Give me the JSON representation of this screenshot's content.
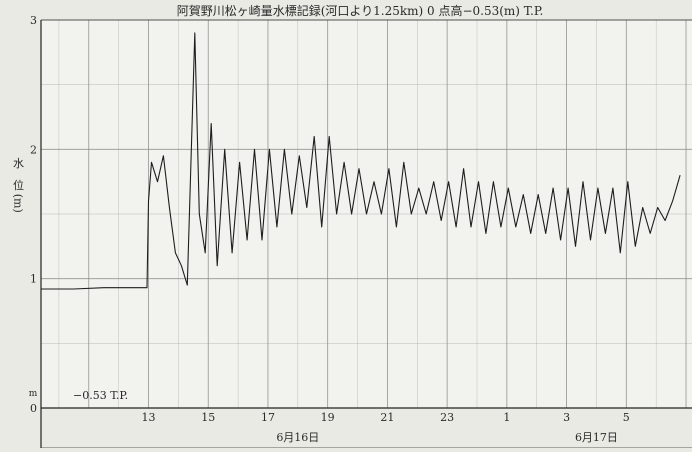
{
  "chart_data": {
    "type": "line",
    "title": "阿賀野川松ヶ崎量水標記録(河口より1.25km) 0 点高−0.53(m) T.P.",
    "ylabel": "水　位 (m)",
    "y_unit_label": "m",
    "ylim": [
      0,
      3
    ],
    "y_ticks": [
      "0",
      "1",
      "2",
      "3"
    ],
    "x_ticks": [
      "13",
      "15",
      "17",
      "19",
      "21",
      "23",
      "1",
      "3",
      "5"
    ],
    "x_tick_hours": [
      13,
      15,
      17,
      19,
      21,
      23,
      25,
      27,
      29
    ],
    "xlim_hours": [
      9.4,
      31.2
    ],
    "date_labels": [
      {
        "text": "6月16日",
        "hour": 18
      },
      {
        "text": "6月17日",
        "hour": 28
      }
    ],
    "datum_annotation": "−0.53 T.P.",
    "grid": true,
    "series": [
      {
        "name": "",
        "x": [
          9.4,
          10.5,
          11.5,
          12.5,
          12.95,
          13.0,
          13.1,
          13.3,
          13.5,
          13.7,
          13.9,
          14.1,
          14.3,
          14.55,
          14.7,
          14.9,
          15.1,
          15.3,
          15.55,
          15.8,
          16.05,
          16.3,
          16.55,
          16.8,
          17.05,
          17.3,
          17.55,
          17.8,
          18.05,
          18.3,
          18.55,
          18.8,
          19.05,
          19.3,
          19.55,
          19.8,
          20.05,
          20.3,
          20.55,
          20.8,
          21.05,
          21.3,
          21.55,
          21.8,
          22.05,
          22.3,
          22.55,
          22.8,
          23.05,
          23.3,
          23.55,
          23.8,
          24.05,
          24.3,
          24.55,
          24.8,
          25.05,
          25.3,
          25.55,
          25.8,
          26.05,
          26.3,
          26.55,
          26.8,
          27.05,
          27.3,
          27.55,
          27.8,
          28.05,
          28.3,
          28.55,
          28.8,
          29.05,
          29.3,
          29.55,
          29.8,
          30.05,
          30.3,
          30.55,
          30.8
        ],
        "y": [
          0.92,
          0.92,
          0.93,
          0.93,
          0.93,
          1.6,
          1.9,
          1.75,
          1.95,
          1.55,
          1.2,
          1.1,
          0.95,
          2.9,
          1.5,
          1.2,
          2.2,
          1.1,
          2.0,
          1.2,
          1.9,
          1.3,
          2.0,
          1.3,
          2.0,
          1.4,
          2.0,
          1.5,
          1.95,
          1.55,
          2.1,
          1.4,
          2.1,
          1.5,
          1.9,
          1.5,
          1.85,
          1.5,
          1.75,
          1.5,
          1.85,
          1.4,
          1.9,
          1.5,
          1.7,
          1.5,
          1.75,
          1.45,
          1.75,
          1.4,
          1.85,
          1.4,
          1.75,
          1.35,
          1.75,
          1.4,
          1.7,
          1.4,
          1.65,
          1.35,
          1.65,
          1.35,
          1.7,
          1.3,
          1.7,
          1.25,
          1.75,
          1.3,
          1.7,
          1.35,
          1.7,
          1.2,
          1.75,
          1.25,
          1.55,
          1.35,
          1.55,
          1.45,
          1.6,
          1.8
        ]
      }
    ]
  }
}
